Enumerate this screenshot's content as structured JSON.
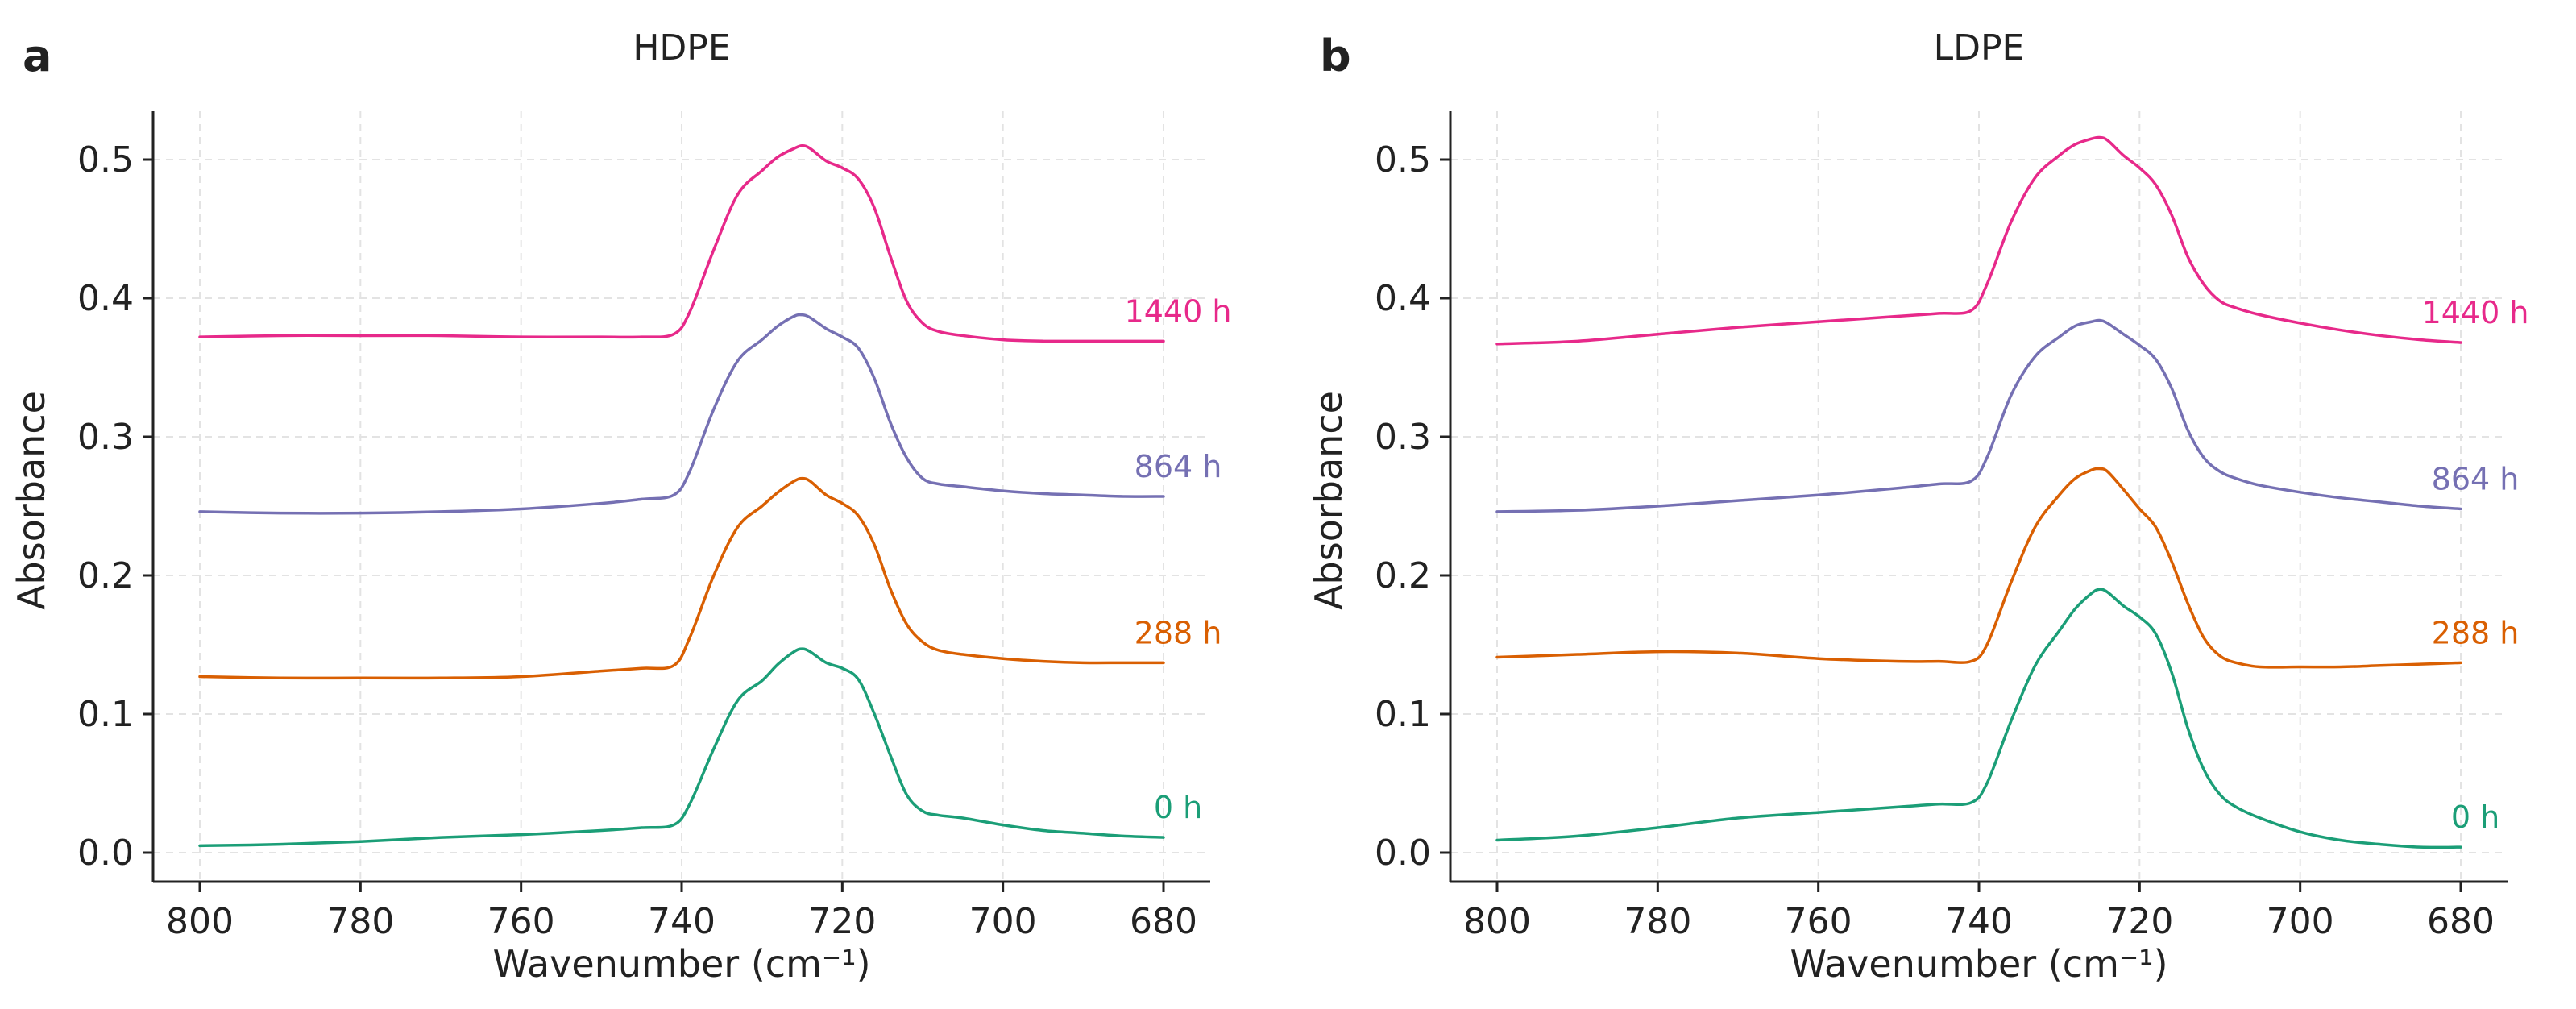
{
  "chart_data": [
    {
      "type": "line",
      "panel_label": "a",
      "title": "HDPE",
      "xlabel": "Wavenumber (cm⁻¹)",
      "ylabel": "Absorbance",
      "xlim": [
        800,
        680
      ],
      "ylim": [
        0.0,
        0.5
      ],
      "x_ticks": [
        "800",
        "780",
        "760",
        "740",
        "720",
        "700",
        "680"
      ],
      "y_ticks": [
        "0.0",
        "0.1",
        "0.2",
        "0.3",
        "0.4",
        "0.5"
      ],
      "grid": true,
      "series": [
        {
          "name": "0 h",
          "color": "#1b9e77",
          "x": [
            800,
            790,
            780,
            770,
            760,
            750,
            745,
            741,
            739,
            736,
            733,
            730,
            728,
            726,
            725,
            724,
            722,
            720,
            718,
            716,
            714,
            712,
            710,
            708,
            705,
            700,
            695,
            690,
            685,
            680
          ],
          "y": [
            0.005,
            0.006,
            0.008,
            0.011,
            0.013,
            0.016,
            0.018,
            0.02,
            0.035,
            0.075,
            0.11,
            0.124,
            0.136,
            0.145,
            0.147,
            0.145,
            0.137,
            0.133,
            0.125,
            0.1,
            0.07,
            0.042,
            0.03,
            0.027,
            0.025,
            0.02,
            0.016,
            0.014,
            0.012,
            0.011
          ]
        },
        {
          "name": "288 h",
          "color": "#d95f02",
          "x": [
            800,
            790,
            780,
            770,
            760,
            750,
            745,
            741,
            739,
            736,
            733,
            730,
            728,
            726,
            725,
            724,
            722,
            720,
            718,
            716,
            714,
            712,
            710,
            708,
            705,
            700,
            695,
            690,
            685,
            680
          ],
          "y": [
            0.127,
            0.126,
            0.126,
            0.126,
            0.127,
            0.131,
            0.133,
            0.135,
            0.155,
            0.2,
            0.235,
            0.25,
            0.26,
            0.268,
            0.27,
            0.268,
            0.258,
            0.252,
            0.243,
            0.222,
            0.19,
            0.165,
            0.152,
            0.146,
            0.143,
            0.14,
            0.138,
            0.137,
            0.137,
            0.137
          ]
        },
        {
          "name": "864 h",
          "color": "#7570b3",
          "x": [
            800,
            790,
            780,
            770,
            760,
            750,
            745,
            741,
            739,
            736,
            733,
            730,
            728,
            726,
            725,
            724,
            722,
            720,
            718,
            716,
            714,
            712,
            710,
            708,
            705,
            700,
            695,
            690,
            685,
            680
          ],
          "y": [
            0.246,
            0.245,
            0.245,
            0.246,
            0.248,
            0.252,
            0.255,
            0.258,
            0.275,
            0.32,
            0.355,
            0.37,
            0.38,
            0.387,
            0.388,
            0.386,
            0.378,
            0.372,
            0.364,
            0.342,
            0.31,
            0.285,
            0.27,
            0.266,
            0.264,
            0.261,
            0.259,
            0.258,
            0.257,
            0.257
          ]
        },
        {
          "name": "1440 h",
          "color": "#e7298a",
          "x": [
            800,
            790,
            780,
            770,
            760,
            750,
            745,
            741,
            739,
            736,
            733,
            730,
            728,
            726,
            725,
            724,
            722,
            720,
            718,
            716,
            714,
            712,
            710,
            708,
            705,
            700,
            695,
            690,
            685,
            680
          ],
          "y": [
            0.372,
            0.373,
            0.373,
            0.373,
            0.372,
            0.372,
            0.372,
            0.374,
            0.39,
            0.435,
            0.475,
            0.492,
            0.502,
            0.508,
            0.51,
            0.508,
            0.499,
            0.494,
            0.486,
            0.465,
            0.43,
            0.398,
            0.382,
            0.376,
            0.373,
            0.37,
            0.369,
            0.369,
            0.369,
            0.369
          ]
        }
      ]
    },
    {
      "type": "line",
      "panel_label": "b",
      "title": "LDPE",
      "xlabel": "Wavenumber (cm⁻¹)",
      "ylabel": "Absorbance",
      "xlim": [
        800,
        680
      ],
      "ylim": [
        0.0,
        0.5
      ],
      "x_ticks": [
        "800",
        "780",
        "760",
        "740",
        "720",
        "700",
        "680"
      ],
      "y_ticks": [
        "0.0",
        "0.1",
        "0.2",
        "0.3",
        "0.4",
        "0.5"
      ],
      "grid": true,
      "series": [
        {
          "name": "0 h",
          "color": "#1b9e77",
          "x": [
            800,
            790,
            780,
            770,
            760,
            750,
            745,
            741,
            739,
            736,
            733,
            730,
            728,
            726,
            725,
            724,
            722,
            720,
            718,
            716,
            714,
            712,
            710,
            708,
            705,
            700,
            695,
            690,
            685,
            680
          ],
          "y": [
            0.009,
            0.012,
            0.018,
            0.025,
            0.029,
            0.033,
            0.035,
            0.036,
            0.05,
            0.095,
            0.135,
            0.16,
            0.176,
            0.187,
            0.19,
            0.188,
            0.178,
            0.17,
            0.158,
            0.13,
            0.09,
            0.06,
            0.042,
            0.033,
            0.025,
            0.015,
            0.009,
            0.006,
            0.004,
            0.004
          ]
        },
        {
          "name": "288 h",
          "color": "#d95f02",
          "x": [
            800,
            790,
            780,
            770,
            760,
            750,
            745,
            741,
            739,
            736,
            733,
            730,
            728,
            726,
            725,
            724,
            722,
            720,
            718,
            716,
            714,
            712,
            710,
            708,
            705,
            700,
            695,
            690,
            685,
            680
          ],
          "y": [
            0.141,
            0.143,
            0.145,
            0.144,
            0.14,
            0.138,
            0.138,
            0.138,
            0.15,
            0.195,
            0.235,
            0.258,
            0.27,
            0.276,
            0.277,
            0.275,
            0.262,
            0.248,
            0.235,
            0.21,
            0.18,
            0.155,
            0.142,
            0.137,
            0.134,
            0.134,
            0.134,
            0.135,
            0.136,
            0.137
          ]
        },
        {
          "name": "864 h",
          "color": "#7570b3",
          "x": [
            800,
            790,
            780,
            770,
            760,
            750,
            745,
            741,
            739,
            736,
            733,
            730,
            728,
            726,
            725,
            724,
            722,
            720,
            718,
            716,
            714,
            712,
            710,
            708,
            705,
            700,
            695,
            690,
            685,
            680
          ],
          "y": [
            0.246,
            0.247,
            0.25,
            0.254,
            0.258,
            0.263,
            0.266,
            0.268,
            0.285,
            0.33,
            0.358,
            0.372,
            0.38,
            0.383,
            0.384,
            0.382,
            0.374,
            0.366,
            0.356,
            0.335,
            0.305,
            0.285,
            0.275,
            0.27,
            0.265,
            0.26,
            0.256,
            0.253,
            0.25,
            0.248
          ]
        },
        {
          "name": "1440 h",
          "color": "#e7298a",
          "x": [
            800,
            790,
            780,
            770,
            760,
            750,
            745,
            741,
            739,
            736,
            733,
            730,
            728,
            726,
            725,
            724,
            722,
            720,
            718,
            716,
            714,
            712,
            710,
            708,
            705,
            700,
            695,
            690,
            685,
            680
          ],
          "y": [
            0.367,
            0.369,
            0.374,
            0.379,
            0.383,
            0.387,
            0.389,
            0.391,
            0.41,
            0.455,
            0.487,
            0.503,
            0.511,
            0.515,
            0.516,
            0.514,
            0.503,
            0.494,
            0.482,
            0.46,
            0.43,
            0.41,
            0.398,
            0.393,
            0.388,
            0.382,
            0.377,
            0.373,
            0.37,
            0.368
          ]
        }
      ]
    }
  ]
}
